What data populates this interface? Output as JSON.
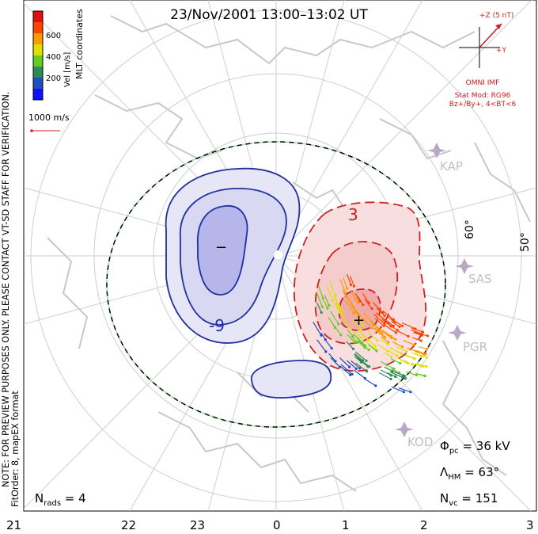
{
  "title": "23/Nov/2001  13:00–13:02  UT",
  "colorbar": {
    "label": "Vel [m/s]",
    "ticks": [
      "600",
      "400",
      "200"
    ],
    "colors": [
      "#e01010",
      "#ff4400",
      "#ff9900",
      "#e0e000",
      "#66cc22",
      "#2e8b57",
      "#1f4fbf",
      "#1010ff"
    ]
  },
  "coords_label": "MLT coordinates",
  "scale_label": "1000 m/s",
  "side_note": "NOTE: FOR PREVIEW PURPOSES ONLY. PLEASE CONTACT VT-SD STAFF FOR VERIFICATION.",
  "fit_note": "FitOrder: 8, mapEX format",
  "imf": {
    "z_label": "+Z (5 nT)",
    "y_label": "+Y",
    "source": "OMNI IMF",
    "model": "Stat Mod: RG96",
    "condition": "Bz+/By+, 4<BT<6"
  },
  "stations": [
    "KAP",
    "SAS",
    "PGR",
    "KOD"
  ],
  "latitude_labels": [
    "60°",
    "50°"
  ],
  "contour_labels": [
    "-9",
    "3"
  ],
  "potential_minus": "−",
  "potential_plus": "+",
  "stats": {
    "phi_pc": "Φpc = 36 kV",
    "lambda_hm": "ΛHM = 63°",
    "n_vc": "Nvc = 151",
    "n_rads": "Nrads = 4"
  },
  "mlt_ticks": [
    "21",
    "22",
    "23",
    "0",
    "1",
    "2",
    "3"
  ]
}
